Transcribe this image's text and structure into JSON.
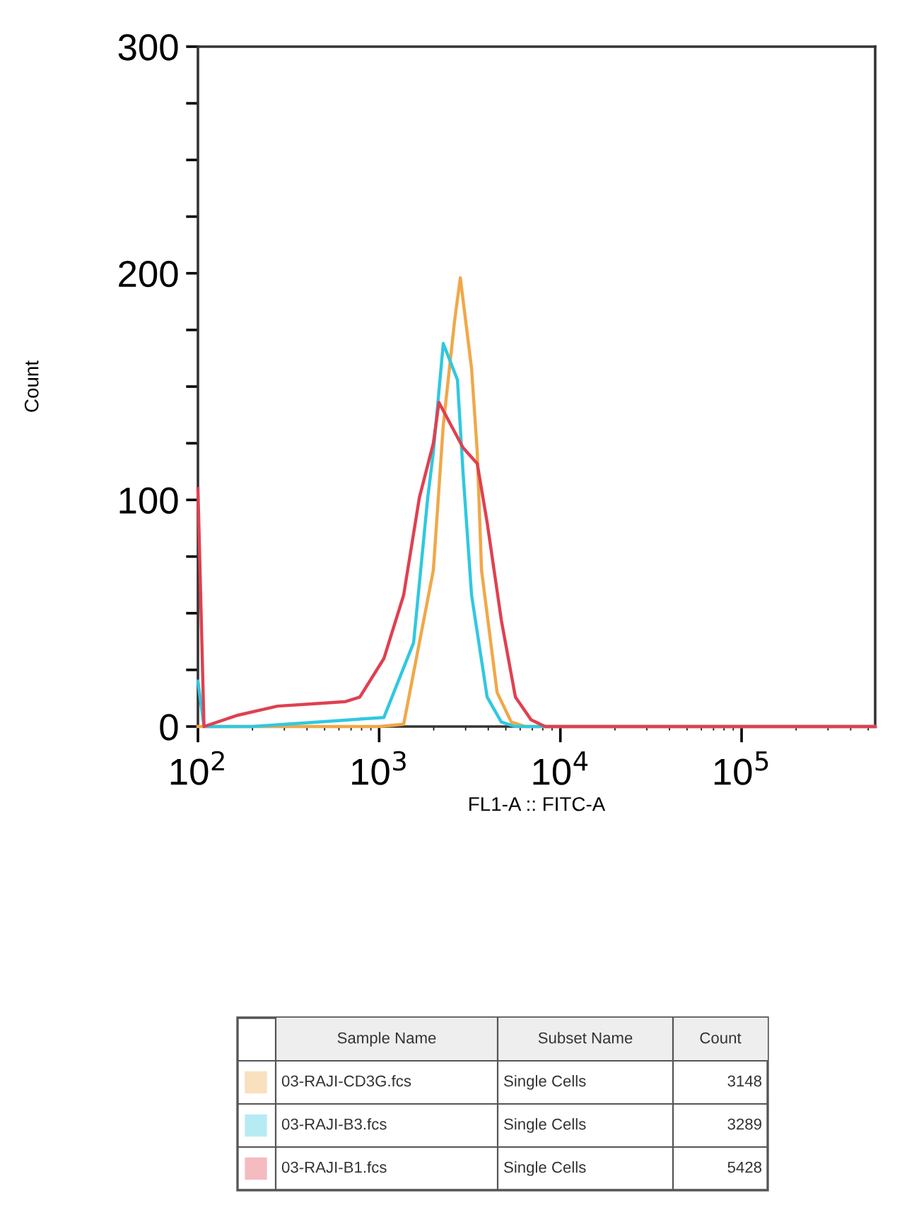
{
  "chart_data": {
    "type": "line",
    "xlabel": "FL1-A :: FITC-A",
    "ylabel": "Count",
    "log": "x",
    "xlim": [
      100,
      546000
    ],
    "ylim": [
      0,
      300
    ],
    "xticks": [
      {
        "value": 100,
        "label": "10$^{2}$"
      },
      {
        "value": 1000,
        "label": "10$^{3}$"
      },
      {
        "value": 10000,
        "label": "10$^{4}$"
      },
      {
        "value": 100000,
        "label": "10$^{5}$"
      }
    ],
    "yticks": [
      0,
      {
        "value": 25,
        "label": null
      },
      {
        "value": 50,
        "label": null
      },
      {
        "value": 75,
        "label": null
      },
      100,
      {
        "value": 125,
        "label": null
      },
      {
        "value": 150,
        "label": null
      },
      {
        "value": 175,
        "label": null
      },
      200,
      {
        "value": 225,
        "label": null
      },
      {
        "value": 250,
        "label": null
      },
      {
        "value": 275,
        "label": null
      },
      300
    ],
    "grid": false,
    "legend": "bottom",
    "marker": "none",
    "line_style": "solid",
    "series": [
      {
        "name": "03-RAJI-CD3G.fcs",
        "color": "#f0a848",
        "x": [
          100,
          1000,
          1365,
          1991,
          2259,
          2608,
          2805,
          3236,
          3479,
          3673,
          4477,
          5358,
          6412,
          546000
        ],
        "values": [
          0,
          0,
          1,
          69,
          133,
          179,
          198,
          158,
          121,
          69,
          15,
          2,
          0,
          0
        ]
      },
      {
        "name": "03-RAJI-B3.fcs",
        "color": "#30c8e0",
        "x": [
          100,
          108,
          200,
          1062,
          1549,
          1854,
          1991,
          2259,
          2704,
          2904,
          3236,
          3945,
          4722,
          5649,
          546000
        ],
        "values": [
          20,
          0,
          0,
          4,
          37,
          101,
          121,
          169,
          153,
          112,
          58,
          13,
          2,
          0,
          0
        ]
      },
      {
        "name": "03-RAJI-B1.fcs",
        "color": "#e04050",
        "x": [
          100,
          108,
          166,
          275,
          424,
          653,
          782,
          1062,
          1365,
          1667,
          1991,
          2138,
          2904,
          3479,
          3945,
          4722,
          5649,
          6887,
          8241,
          546000
        ],
        "values": [
          105,
          0,
          5,
          9,
          10,
          11,
          13,
          30,
          58,
          101,
          125,
          143,
          123,
          116,
          90,
          47,
          13,
          3,
          0,
          0
        ]
      }
    ],
    "annotations": [
      "Sample Name",
      "Subset Name",
      "Count",
      "Single Cells",
      "3148",
      "Single Cells",
      "3289",
      "Single Cells",
      "5428"
    ]
  }
}
